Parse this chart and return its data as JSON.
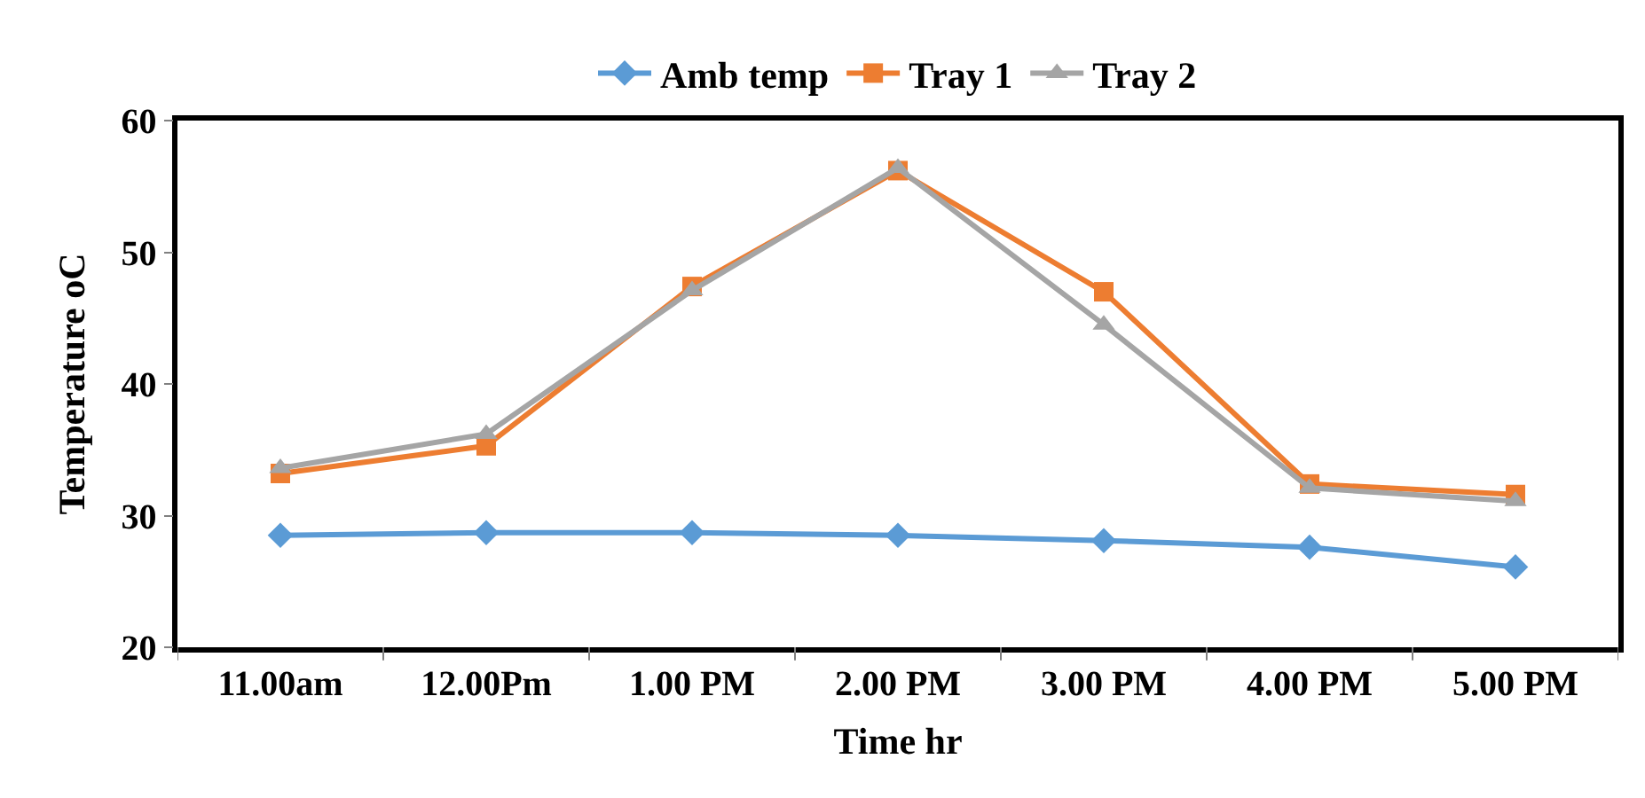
{
  "chart_data": {
    "type": "line",
    "xlabel": "Time hr",
    "ylabel": "Temperature oC",
    "categories": [
      "11.00am",
      "12.00Pm",
      "1.00 PM",
      "2.00 PM",
      "3.00 PM",
      "4.00 PM",
      "5.00 PM"
    ],
    "series": [
      {
        "name": "Amb temp",
        "color": "#5b9bd5",
        "marker": "diamond",
        "values": [
          28.5,
          28.7,
          28.7,
          28.5,
          28.1,
          27.6,
          26.1
        ]
      },
      {
        "name": "Tray 1",
        "color": "#ed7d31",
        "marker": "square",
        "values": [
          33.2,
          35.3,
          47.4,
          56.2,
          47.0,
          32.4,
          31.6
        ]
      },
      {
        "name": "Tray 2",
        "color": "#a5a5a5",
        "marker": "triangle",
        "values": [
          33.6,
          36.2,
          47.1,
          56.4,
          44.5,
          32.1,
          31.1
        ]
      }
    ],
    "ylim": [
      20,
      60
    ],
    "yticks": [
      20,
      30,
      40,
      50,
      60
    ],
    "legend": "top"
  }
}
